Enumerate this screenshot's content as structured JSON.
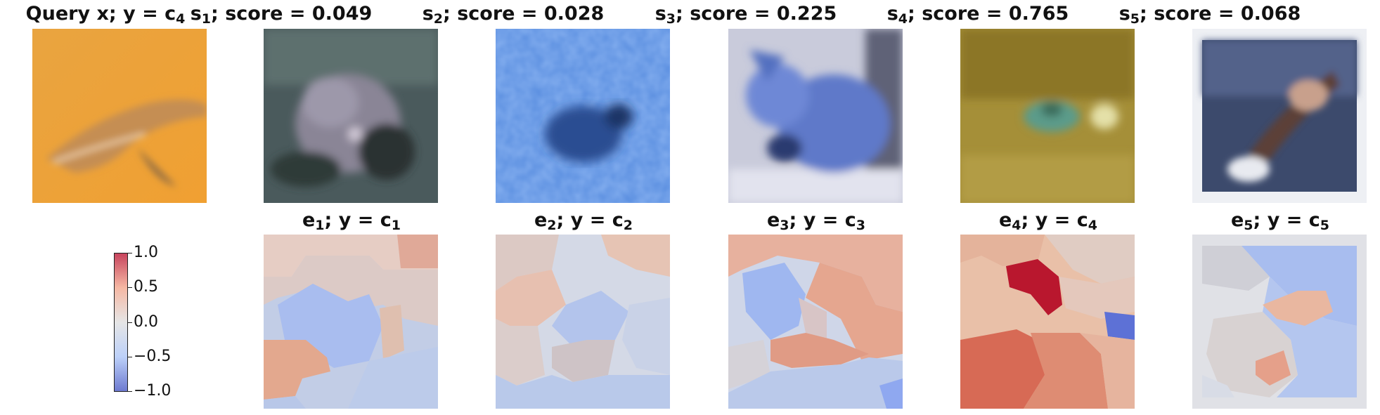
{
  "query": {
    "title_prefix": "Query x; y",
    "title_eq": " = c",
    "title_sub": "4"
  },
  "samples": [
    {
      "letter": "s",
      "index": "1",
      "score_text": "; score = 0.049",
      "score": 0.049
    },
    {
      "letter": "s",
      "index": "2",
      "score_text": "; score = 0.028",
      "score": 0.028
    },
    {
      "letter": "s",
      "index": "3",
      "score_text": "; score = 0.225",
      "score": 0.225
    },
    {
      "letter": "s",
      "index": "4",
      "score_text": "; score = 0.765",
      "score": 0.765
    },
    {
      "letter": "s",
      "index": "5",
      "score_text": "; score = 0.068",
      "score": 0.068
    }
  ],
  "explanations": [
    {
      "letter": "e",
      "index": "1",
      "mid": "; y = c",
      "class_index": "1"
    },
    {
      "letter": "e",
      "index": "2",
      "mid": "; y = c",
      "class_index": "2"
    },
    {
      "letter": "e",
      "index": "3",
      "mid": "; y = c",
      "class_index": "3"
    },
    {
      "letter": "e",
      "index": "4",
      "mid": "; y = c",
      "class_index": "4"
    },
    {
      "letter": "e",
      "index": "5",
      "mid": "; y = c",
      "class_index": "5"
    }
  ],
  "colorbar": {
    "ticks": [
      "1.0",
      "0.5",
      "0.0",
      "−0.5",
      "−1.0"
    ],
    "colors": {
      "high": "#b40426",
      "mid": "#dddddd",
      "low": "#3b4cc0"
    }
  }
}
